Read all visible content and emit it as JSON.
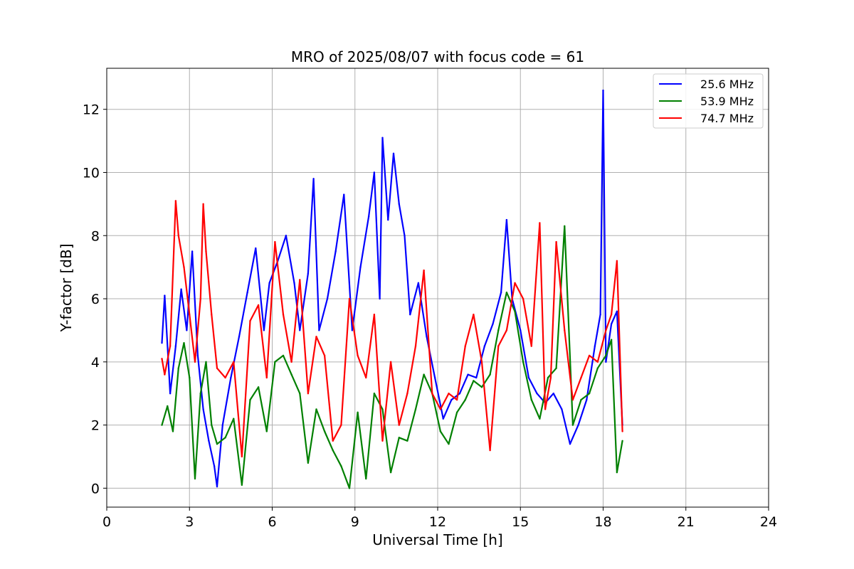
{
  "chart_data": {
    "type": "line",
    "title": "MRO of 2025/08/07 with focus code = 61",
    "xlabel": "Universal Time [h]",
    "ylabel": "Y-factor [dB]",
    "xlim": [
      0,
      24
    ],
    "ylim": [
      -0.6,
      13.3
    ],
    "xticks": [
      0,
      3,
      6,
      9,
      12,
      15,
      18,
      21,
      24
    ],
    "yticks": [
      0,
      2,
      4,
      6,
      8,
      10,
      12
    ],
    "grid": true,
    "legend_position": "top-right",
    "series": [
      {
        "name": "25.6 MHz",
        "color": "#0000ff",
        "x": [
          2.0,
          2.1,
          2.3,
          2.5,
          2.7,
          2.9,
          3.1,
          3.3,
          3.5,
          3.7,
          3.9,
          4.0,
          4.2,
          4.5,
          4.8,
          5.1,
          5.4,
          5.7,
          5.9,
          6.2,
          6.5,
          6.8,
          7.0,
          7.3,
          7.5,
          7.7,
          8.0,
          8.3,
          8.6,
          8.9,
          9.2,
          9.5,
          9.7,
          9.9,
          10.0,
          10.2,
          10.4,
          10.6,
          10.8,
          11.0,
          11.3,
          11.6,
          11.9,
          12.2,
          12.5,
          12.8,
          13.1,
          13.4,
          13.7,
          14.0,
          14.3,
          14.5,
          14.7,
          15.0,
          15.3,
          15.6,
          15.9,
          16.2,
          16.5,
          16.8,
          17.1,
          17.4,
          17.7,
          17.9,
          18.0,
          18.1,
          18.3,
          18.5,
          18.7
        ],
        "values": [
          4.6,
          6.1,
          3.0,
          4.5,
          6.3,
          5.0,
          7.5,
          4.2,
          2.5,
          1.5,
          0.7,
          0.05,
          2.0,
          3.5,
          4.8,
          6.2,
          7.6,
          5.0,
          6.5,
          7.2,
          8.0,
          6.5,
          5.0,
          6.8,
          9.8,
          5.0,
          6.0,
          7.5,
          9.3,
          5.0,
          7.0,
          8.6,
          10.0,
          6.0,
          11.1,
          8.5,
          10.6,
          9.0,
          8.0,
          5.5,
          6.5,
          4.8,
          3.5,
          2.2,
          2.8,
          3.0,
          3.6,
          3.5,
          4.5,
          5.2,
          6.2,
          8.5,
          6.0,
          5.0,
          3.5,
          3.0,
          2.7,
          3.0,
          2.5,
          1.4,
          2.0,
          2.8,
          4.5,
          5.5,
          12.6,
          4.0,
          5.2,
          5.6,
          2.0
        ]
      },
      {
        "name": "53.9 MHz",
        "color": "#008000",
        "x": [
          2.0,
          2.2,
          2.4,
          2.6,
          2.8,
          3.0,
          3.2,
          3.4,
          3.6,
          3.8,
          4.0,
          4.3,
          4.6,
          4.9,
          5.2,
          5.5,
          5.8,
          6.1,
          6.4,
          6.7,
          7.0,
          7.3,
          7.6,
          7.9,
          8.2,
          8.5,
          8.8,
          9.1,
          9.4,
          9.7,
          10.0,
          10.3,
          10.6,
          10.9,
          11.2,
          11.5,
          11.8,
          12.1,
          12.4,
          12.7,
          13.0,
          13.3,
          13.6,
          13.9,
          14.2,
          14.5,
          14.8,
          15.1,
          15.4,
          15.7,
          16.0,
          16.3,
          16.6,
          16.9,
          17.2,
          17.5,
          17.8,
          18.1,
          18.3,
          18.5,
          18.7
        ],
        "values": [
          2.0,
          2.6,
          1.8,
          3.8,
          4.6,
          3.5,
          0.3,
          3.0,
          4.0,
          2.0,
          1.4,
          1.6,
          2.2,
          0.1,
          2.8,
          3.2,
          1.8,
          4.0,
          4.2,
          3.6,
          3.0,
          0.8,
          2.5,
          1.8,
          1.2,
          0.7,
          0.0,
          2.4,
          0.3,
          3.0,
          2.5,
          0.5,
          1.6,
          1.5,
          2.5,
          3.6,
          3.0,
          1.8,
          1.4,
          2.4,
          2.8,
          3.4,
          3.2,
          3.6,
          5.0,
          6.2,
          5.6,
          4.0,
          2.8,
          2.2,
          3.5,
          3.8,
          8.3,
          2.0,
          2.8,
          3.0,
          3.8,
          4.2,
          4.7,
          0.5,
          1.5
        ]
      },
      {
        "name": "74.7 MHz",
        "color": "#ff0000",
        "x": [
          2.0,
          2.1,
          2.3,
          2.5,
          2.6,
          2.8,
          3.0,
          3.2,
          3.4,
          3.5,
          3.6,
          3.8,
          4.0,
          4.3,
          4.6,
          4.9,
          5.2,
          5.5,
          5.8,
          6.1,
          6.4,
          6.7,
          7.0,
          7.3,
          7.6,
          7.9,
          8.2,
          8.5,
          8.8,
          9.1,
          9.4,
          9.7,
          10.0,
          10.3,
          10.6,
          10.9,
          11.2,
          11.5,
          11.8,
          12.1,
          12.4,
          12.7,
          13.0,
          13.3,
          13.6,
          13.9,
          14.2,
          14.5,
          14.8,
          15.1,
          15.4,
          15.7,
          15.9,
          16.1,
          16.3,
          16.6,
          16.9,
          17.2,
          17.5,
          17.8,
          18.1,
          18.3,
          18.5,
          18.7
        ],
        "values": [
          4.1,
          3.6,
          4.5,
          9.1,
          8.0,
          7.0,
          5.5,
          4.0,
          6.0,
          9.0,
          7.5,
          5.5,
          3.8,
          3.5,
          4.0,
          1.0,
          5.3,
          5.8,
          3.5,
          7.8,
          5.5,
          4.0,
          6.6,
          3.0,
          4.8,
          4.2,
          1.5,
          2.0,
          6.0,
          4.2,
          3.5,
          5.5,
          1.5,
          4.0,
          2.0,
          3.0,
          4.5,
          6.9,
          3.0,
          2.5,
          3.0,
          2.8,
          4.5,
          5.5,
          4.0,
          1.2,
          4.5,
          5.0,
          6.5,
          6.0,
          4.5,
          8.4,
          2.5,
          3.5,
          7.8,
          5.0,
          2.8,
          3.5,
          4.2,
          4.0,
          5.0,
          5.5,
          7.2,
          1.8
        ]
      }
    ]
  }
}
